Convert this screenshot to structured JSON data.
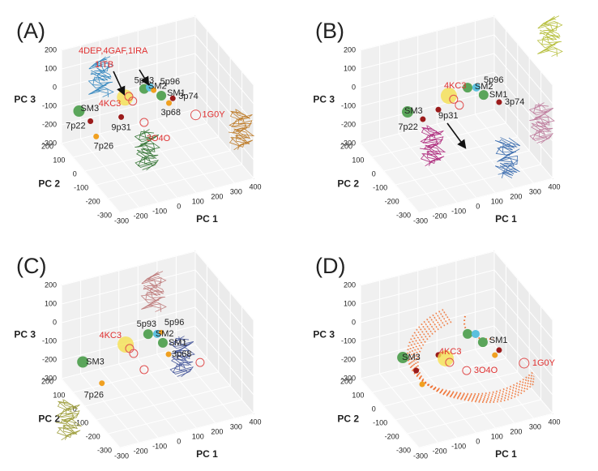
{
  "chart_data": [
    {
      "type": "scatter3d",
      "panel_label": "(A)",
      "xlabel": "PC 1",
      "ylabel": "PC 2",
      "zlabel": "PC 3",
      "xlim": [
        -300,
        400
      ],
      "ylim": [
        -300,
        200
      ],
      "zlim": [
        -300,
        200
      ],
      "xticks": [
        -300,
        -200,
        -100,
        0,
        100,
        200,
        300,
        400
      ],
      "yticks": [
        -300,
        -200,
        -100,
        0,
        100,
        200
      ],
      "zticks": [
        -300,
        -200,
        -100,
        0,
        100,
        200
      ],
      "annotations": [
        "4DEP,4GAF,1IRA",
        "1ITB"
      ],
      "points": [
        {
          "name": "SM3",
          "color": "#5aa55a",
          "marker": "filled",
          "x": -270,
          "y": 100,
          "z": -60,
          "size": 7
        },
        {
          "name": "7p22",
          "color": "#9b1b1b",
          "marker": "filled",
          "x": -210,
          "y": 100,
          "z": -130,
          "size": 3.5
        },
        {
          "name": "7p26",
          "color": "#f0a020",
          "marker": "filled",
          "x": -180,
          "y": 100,
          "z": -220,
          "size": 3.5
        },
        {
          "name": "4KC3",
          "color": "#f5e050",
          "marker": "filled",
          "x": -90,
          "y": 0,
          "z": 40,
          "size": 10,
          "label_color": "#e03030"
        },
        {
          "name": "9p31",
          "color": "#9b1b1b",
          "marker": "filled",
          "x": -110,
          "y": 0,
          "z": -60,
          "size": 3.5
        },
        {
          "name": null,
          "color": "#e05050",
          "marker": "open",
          "x": -50,
          "y": 0,
          "z": 10,
          "size": 5
        },
        {
          "name": null,
          "color": "#e05050",
          "marker": "open",
          "x": -70,
          "y": 0,
          "z": 40,
          "size": 5
        },
        {
          "name": "3O4O",
          "color": "#e05050",
          "marker": "open",
          "x": 10,
          "y": 0,
          "z": -120,
          "size": 5,
          "label_color": "#e03030"
        },
        {
          "name": "5p93",
          "color": "#5aa55a",
          "marker": "filled",
          "x": 10,
          "y": 0,
          "z": 60,
          "size": 6
        },
        {
          "name": "SM2",
          "color": "#5bc0de",
          "marker": "filled",
          "x": 40,
          "y": 0,
          "z": 60,
          "size": 5
        },
        {
          "name": "5p96",
          "color": "#f0a020",
          "marker": "filled",
          "x": 60,
          "y": 0,
          "z": 40,
          "size": 3.5
        },
        {
          "name": "SM1",
          "color": "#5aa55a",
          "marker": "filled",
          "x": 100,
          "y": 0,
          "z": 0,
          "size": 6
        },
        {
          "name": "3p74",
          "color": "#9b1b1b",
          "marker": "filled",
          "x": 160,
          "y": 0,
          "z": -30,
          "size": 3.5
        },
        {
          "name": "3p68",
          "color": "#f0a020",
          "marker": "filled",
          "x": 140,
          "y": 0,
          "z": -50,
          "size": 3.5
        },
        {
          "name": "1G0Y",
          "color": "#e05050",
          "marker": "open",
          "x": 280,
          "y": 0,
          "z": -150,
          "size": 6,
          "label_color": "#e03030"
        }
      ]
    },
    {
      "type": "scatter3d",
      "panel_label": "(B)",
      "xlabel": "PC 1",
      "ylabel": "PC 2",
      "zlabel": "PC 3",
      "xlim": [
        -300,
        400
      ],
      "ylim": [
        -300,
        200
      ],
      "zlim": [
        -300,
        200
      ],
      "xticks": [
        -300,
        -200,
        -100,
        0,
        100,
        200,
        300,
        400
      ],
      "yticks": [
        -300,
        -200,
        -100,
        0,
        100,
        200
      ],
      "zticks": [
        -300,
        -200,
        -100,
        0,
        100,
        200
      ],
      "points": [
        {
          "name": "SM3",
          "color": "#5aa55a",
          "marker": "filled",
          "x": -115,
          "y": 100,
          "z": -105,
          "size": 7
        },
        {
          "name": "7p22",
          "color": "#9b1b1b",
          "marker": "filled",
          "x": -35,
          "y": 100,
          "z": -165,
          "size": 3.5
        },
        {
          "name": "9p31",
          "color": "#9b1b1b",
          "marker": "filled",
          "x": -15,
          "y": 0,
          "z": -45,
          "size": 3.5
        },
        {
          "name": "4KC3",
          "color": "#f5e050",
          "marker": "filled",
          "x": 40,
          "y": 0,
          "z": 15,
          "size": 10,
          "label_color": "#e03030"
        },
        {
          "name": null,
          "color": "#e05050",
          "marker": "open",
          "x": 65,
          "y": 0,
          "z": -10,
          "size": 5
        },
        {
          "name": null,
          "color": "#e05050",
          "marker": "open",
          "x": 95,
          "y": 0,
          "z": -50,
          "size": 5
        },
        {
          "name": "5p96",
          "color": "#5aa55a",
          "marker": "filled",
          "x": 138,
          "y": 0,
          "z": 33,
          "size": 6
        },
        {
          "name": "SM2",
          "color": "#5bc0de",
          "marker": "filled",
          "x": 184,
          "y": 0,
          "z": 22,
          "size": 5
        },
        {
          "name": "SM1",
          "color": "#5aa55a",
          "marker": "filled",
          "x": 222,
          "y": 0,
          "z": -28,
          "size": 6
        },
        {
          "name": "3p74",
          "color": "#9b1b1b",
          "marker": "filled",
          "x": 303,
          "y": 0,
          "z": -88,
          "size": 3.5
        }
      ]
    },
    {
      "type": "scatter3d",
      "panel_label": "(C)",
      "xlabel": "PC 1",
      "ylabel": "PC 2",
      "zlabel": "PC 3",
      "xlim": [
        -300,
        400
      ],
      "ylim": [
        -300,
        200
      ],
      "zlim": [
        -300,
        200
      ],
      "xticks": [
        -300,
        -200,
        -100,
        0,
        100,
        200,
        300,
        400
      ],
      "yticks": [
        -300,
        -200,
        -100,
        0,
        100,
        200
      ],
      "zticks": [
        -300,
        -200,
        -100,
        0,
        100,
        200
      ],
      "points": [
        {
          "name": "SM3",
          "color": "#5aa55a",
          "marker": "filled",
          "x": -250,
          "y": 100,
          "z": -150,
          "size": 7
        },
        {
          "name": "7p26",
          "color": "#f0a020",
          "marker": "filled",
          "x": -150,
          "y": 100,
          "z": -290,
          "size": 3.5
        },
        {
          "name": "4KC3",
          "color": "#f5e050",
          "marker": "filled",
          "x": -87,
          "y": 0,
          "z": -25,
          "size": 10,
          "label_color": "#e03030"
        },
        {
          "name": null,
          "color": "#e05050",
          "marker": "open",
          "x": -66,
          "y": 0,
          "z": -52,
          "size": 5
        },
        {
          "name": null,
          "color": "#e05050",
          "marker": "open",
          "x": -45,
          "y": 0,
          "z": -84,
          "size": 5
        },
        {
          "name": "5p93",
          "color": "#5aa55a",
          "marker": "filled",
          "x": 31,
          "y": 0,
          "z": 0,
          "size": 6
        },
        {
          "name": "SM2",
          "color": "#5bc0de",
          "marker": "filled",
          "x": 78,
          "y": 0,
          "z": -11,
          "size": 5
        },
        {
          "name": "5p96",
          "color": "#f0a020",
          "marker": "filled",
          "x": 99,
          "y": 0,
          "z": -8,
          "size": 3
        },
        {
          "name": "SM1",
          "color": "#5aa55a",
          "marker": "filled",
          "x": 108,
          "y": 0,
          "z": -67,
          "size": 6
        },
        {
          "name": "3p68",
          "color": "#f0a020",
          "marker": "filled",
          "x": 138,
          "y": 0,
          "z": -136,
          "size": 3.5
        },
        {
          "name": null,
          "color": "#e05050",
          "marker": "open",
          "x": 303,
          "y": 0,
          "z": -223,
          "size": 5
        },
        {
          "name": null,
          "color": "#e05050",
          "marker": "open",
          "x": 10,
          "y": 0,
          "z": -185,
          "size": 5
        }
      ]
    },
    {
      "type": "scatter3d",
      "panel_label": "(D)",
      "xlabel": "PC 1",
      "ylabel": "PC 2",
      "zlabel": "PC 3",
      "xlim": [
        -300,
        400
      ],
      "ylim": [
        -300,
        200
      ],
      "zlim": [
        -300,
        200
      ],
      "xticks": [
        -300,
        -200,
        -100,
        0,
        100,
        200,
        300,
        400
      ],
      "yticks": [
        -300,
        -200,
        -100,
        0,
        100,
        200
      ],
      "zticks": [
        -300,
        -200,
        -100,
        0,
        100,
        200
      ],
      "points": [
        {
          "name": "SM3",
          "color": "#5aa55a",
          "marker": "filled",
          "x": -140,
          "y": 100,
          "z": -155,
          "size": 7
        },
        {
          "name": null,
          "color": "#9b1b1b",
          "marker": "filled",
          "x": -70,
          "y": 100,
          "z": -243,
          "size": 3.5
        },
        {
          "name": null,
          "color": "#f0a020",
          "marker": "filled",
          "x": -161,
          "y": -100,
          "z": -145,
          "size": 3.5
        },
        {
          "name": null,
          "color": "#9b1b1b",
          "marker": "filled",
          "x": -15,
          "y": 0,
          "z": -100,
          "size": 3.5
        },
        {
          "name": "4KC3",
          "color": "#f5e050",
          "marker": "filled",
          "x": 23,
          "y": 0,
          "z": -128,
          "size": 10,
          "label_color": "#e03030"
        },
        {
          "name": null,
          "color": "#e05050",
          "marker": "open",
          "x": 44,
          "y": 0,
          "z": -155,
          "size": 5
        },
        {
          "name": null,
          "color": "#5aa55a",
          "marker": "filled",
          "x": 138,
          "y": 0,
          "z": -27,
          "size": 6
        },
        {
          "name": null,
          "color": "#5bc0de",
          "marker": "filled",
          "x": 180,
          "y": 0,
          "z": -38,
          "size": 5
        },
        {
          "name": "SM1",
          "color": "#5aa55a",
          "marker": "filled",
          "x": 218,
          "y": 0,
          "z": -92,
          "size": 6
        },
        {
          "name": null,
          "color": "#9b1b1b",
          "marker": "filled",
          "x": 303,
          "y": 0,
          "z": -157,
          "size": 3.5
        },
        {
          "name": null,
          "color": "#f0a020",
          "marker": "filled",
          "x": 281,
          "y": 0,
          "z": -178,
          "size": 3.5
        },
        {
          "name": "3O4O",
          "color": "#e05050",
          "marker": "open",
          "x": 133,
          "y": 0,
          "z": -222,
          "size": 5,
          "label_color": "#e03030"
        },
        {
          "name": "1G0Y",
          "color": "#e05050",
          "marker": "open",
          "x": 373,
          "y": -100,
          "z": -171,
          "size": 6,
          "label_color": "#e03030"
        }
      ]
    }
  ]
}
